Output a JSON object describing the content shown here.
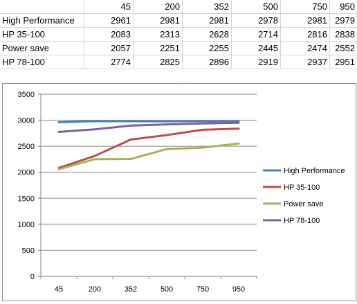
{
  "spreadsheet": {
    "header": [
      "",
      "45",
      "200",
      "352",
      "500",
      "750",
      "950"
    ],
    "rows": [
      {
        "label": "High Performance",
        "values": [
          "2961",
          "2981",
          "2981",
          "2978",
          "2981",
          "2979"
        ]
      },
      {
        "label": "HP 35-100",
        "values": [
          "2083",
          "2313",
          "2628",
          "2714",
          "2816",
          "2838"
        ]
      },
      {
        "label": "Power save",
        "values": [
          "2057",
          "2251",
          "2255",
          "2445",
          "2474",
          "2552"
        ]
      },
      {
        "label": "HP 78-100",
        "values": [
          "2774",
          "2825",
          "2896",
          "2919",
          "2937",
          "2951"
        ]
      }
    ]
  },
  "chart_data": {
    "type": "line",
    "categories": [
      "45",
      "200",
      "352",
      "500",
      "750",
      "950"
    ],
    "ylim": [
      0,
      3500
    ],
    "yticks": [
      "0",
      "500",
      "1000",
      "1500",
      "2000",
      "2500",
      "3000",
      "3500"
    ],
    "grid": true,
    "legend_position": "right",
    "series": [
      {
        "name": "High Performance",
        "color": "#4a7ebb",
        "values": [
          2961,
          2981,
          2981,
          2978,
          2981,
          2979
        ]
      },
      {
        "name": "HP 35-100",
        "color": "#be4b48",
        "values": [
          2083,
          2313,
          2628,
          2714,
          2816,
          2838
        ]
      },
      {
        "name": "Power save",
        "color": "#98b954",
        "values": [
          2057,
          2251,
          2255,
          2445,
          2474,
          2552
        ]
      },
      {
        "name": "HP 78-100",
        "color": "#7d60a0",
        "values": [
          2774,
          2825,
          2896,
          2919,
          2937,
          2951
        ]
      }
    ]
  }
}
